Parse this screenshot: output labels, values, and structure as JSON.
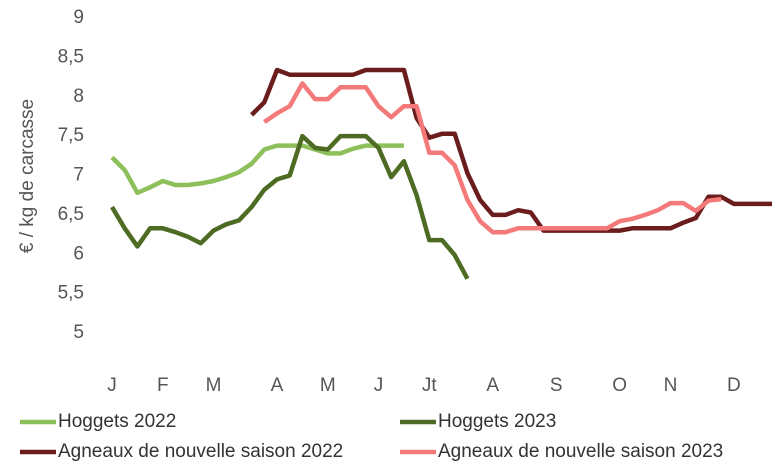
{
  "chart_data": {
    "type": "line",
    "ylabel": "€ / kg de carcasse",
    "categories": [
      "J",
      null,
      null,
      null,
      "F",
      null,
      null,
      null,
      "M",
      null,
      null,
      null,
      null,
      "A",
      null,
      null,
      null,
      "M",
      null,
      null,
      null,
      "J",
      null,
      null,
      null,
      "Jt",
      null,
      null,
      null,
      null,
      "A",
      null,
      null,
      null,
      null,
      "S",
      null,
      null,
      null,
      null,
      "O",
      null,
      null,
      null,
      "N",
      null,
      null,
      null,
      null,
      "D",
      null,
      null,
      null
    ],
    "ylim": [
      5,
      9
    ],
    "yticks": [
      5,
      {
        "value": 5.5,
        "label": "5,5"
      },
      6,
      {
        "value": 6.5,
        "label": "6,5"
      },
      7,
      {
        "value": 7.5,
        "label": "7,5"
      },
      8,
      {
        "value": 8.5,
        "label": "8,5"
      },
      9
    ],
    "grid": false,
    "series": [
      {
        "name": "Hoggets 2022",
        "color": "#8dc05a",
        "values": [
          7.23,
          7.07,
          6.78,
          6.85,
          6.93,
          6.88,
          6.88,
          6.9,
          6.93,
          6.98,
          7.04,
          7.15,
          7.33,
          7.38,
          7.38,
          7.38,
          7.33,
          7.28,
          7.28,
          7.34,
          7.38,
          7.38,
          7.38,
          7.38,
          null,
          null,
          null,
          null,
          null,
          null,
          null,
          null,
          null,
          null,
          null,
          null,
          null,
          null,
          null,
          null,
          null,
          null,
          null,
          null,
          null,
          null,
          null,
          null,
          null,
          null,
          null,
          null,
          null
        ]
      },
      {
        "name": "Hoggets 2023",
        "color": "#4e6b24",
        "values": [
          6.6,
          6.33,
          6.1,
          6.33,
          6.33,
          6.28,
          6.22,
          6.14,
          6.3,
          6.38,
          6.43,
          6.6,
          6.82,
          6.95,
          7.0,
          7.5,
          7.35,
          7.33,
          7.5,
          7.5,
          7.5,
          7.35,
          6.98,
          7.18,
          6.75,
          6.18,
          6.18,
          5.99,
          5.69,
          null,
          null,
          null,
          null,
          null,
          null,
          null,
          null,
          null,
          null,
          null,
          null,
          null,
          null,
          null,
          null,
          null,
          null,
          null,
          null,
          null,
          null,
          null,
          null
        ]
      },
      {
        "name": "Agneaux de nouvelle saison 2022",
        "color": "#6b1d1d",
        "values": [
          null,
          null,
          null,
          null,
          null,
          null,
          null,
          null,
          null,
          null,
          null,
          7.77,
          7.93,
          8.34,
          8.28,
          8.28,
          8.28,
          8.28,
          8.28,
          8.28,
          8.34,
          8.34,
          8.34,
          8.34,
          7.73,
          7.48,
          7.53,
          7.53,
          7.03,
          6.69,
          6.5,
          6.5,
          6.56,
          6.53,
          6.3,
          6.3,
          6.3,
          6.3,
          6.3,
          6.3,
          6.3,
          6.33,
          6.33,
          6.33,
          6.33,
          6.4,
          6.46,
          6.73,
          6.73,
          6.64,
          6.64,
          6.64,
          6.64
        ]
      },
      {
        "name": "Agneaux de nouvelle saison 2023",
        "color": "#f47a7a",
        "values": [
          null,
          null,
          null,
          null,
          null,
          null,
          null,
          null,
          null,
          null,
          null,
          null,
          7.68,
          7.79,
          7.88,
          8.17,
          7.97,
          7.97,
          8.12,
          8.12,
          8.12,
          7.88,
          7.74,
          7.88,
          7.88,
          7.29,
          7.29,
          7.13,
          6.69,
          6.42,
          6.28,
          6.28,
          6.33,
          6.33,
          6.33,
          6.33,
          6.33,
          6.33,
          6.33,
          6.33,
          6.42,
          6.45,
          6.5,
          6.56,
          6.65,
          6.65,
          6.55,
          6.68,
          6.7,
          null,
          null,
          null,
          null
        ]
      }
    ]
  }
}
